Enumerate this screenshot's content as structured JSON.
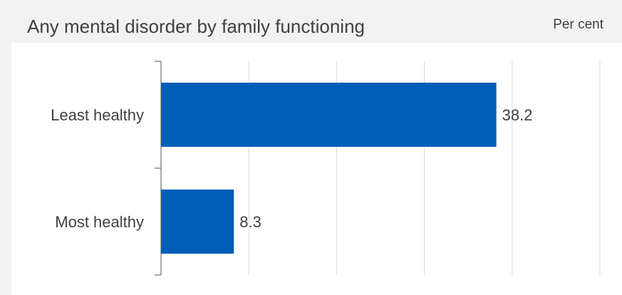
{
  "chart_title": "Any mental disorder by family functioning",
  "unit_label": "Per cent",
  "chart_data": {
    "type": "bar",
    "orientation": "horizontal",
    "title": "Any mental disorder by family functioning",
    "unit": "Per cent",
    "categories": [
      "Least healthy",
      "Most healthy"
    ],
    "values": [
      38.2,
      8.3
    ],
    "value_labels": [
      "38.2",
      "8.3"
    ],
    "xlim": [
      0,
      50
    ],
    "grid": true,
    "bar_color": "#005EB8",
    "grid_color": "#d9d9d9",
    "axis_color": "#8c8c8c"
  }
}
